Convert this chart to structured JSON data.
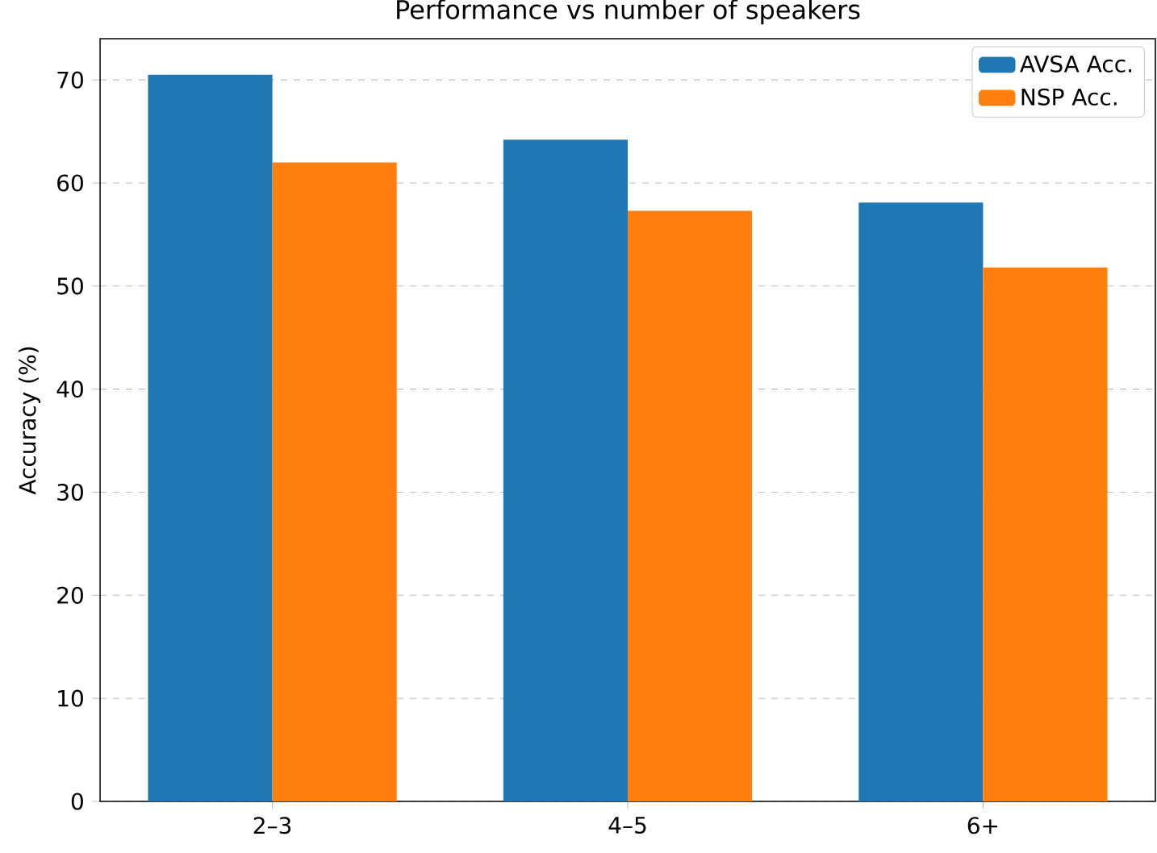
{
  "chart_data": {
    "type": "bar",
    "title": "Performance vs number of speakers",
    "ylabel": "Accuracy (%)",
    "categories": [
      "2–3",
      "4–5",
      "6+"
    ],
    "series": [
      {
        "name": "AVSA Acc.",
        "color": "#1f77b4",
        "values": [
          70.5,
          64.2,
          58.1
        ]
      },
      {
        "name": "NSP Acc.",
        "color": "#ff7f0e",
        "values": [
          62.0,
          57.3,
          51.8
        ]
      }
    ],
    "ylim": [
      0,
      74
    ],
    "yticks": [
      0,
      10,
      20,
      30,
      40,
      50,
      60,
      70
    ],
    "grid": "y",
    "legend": "top right"
  }
}
